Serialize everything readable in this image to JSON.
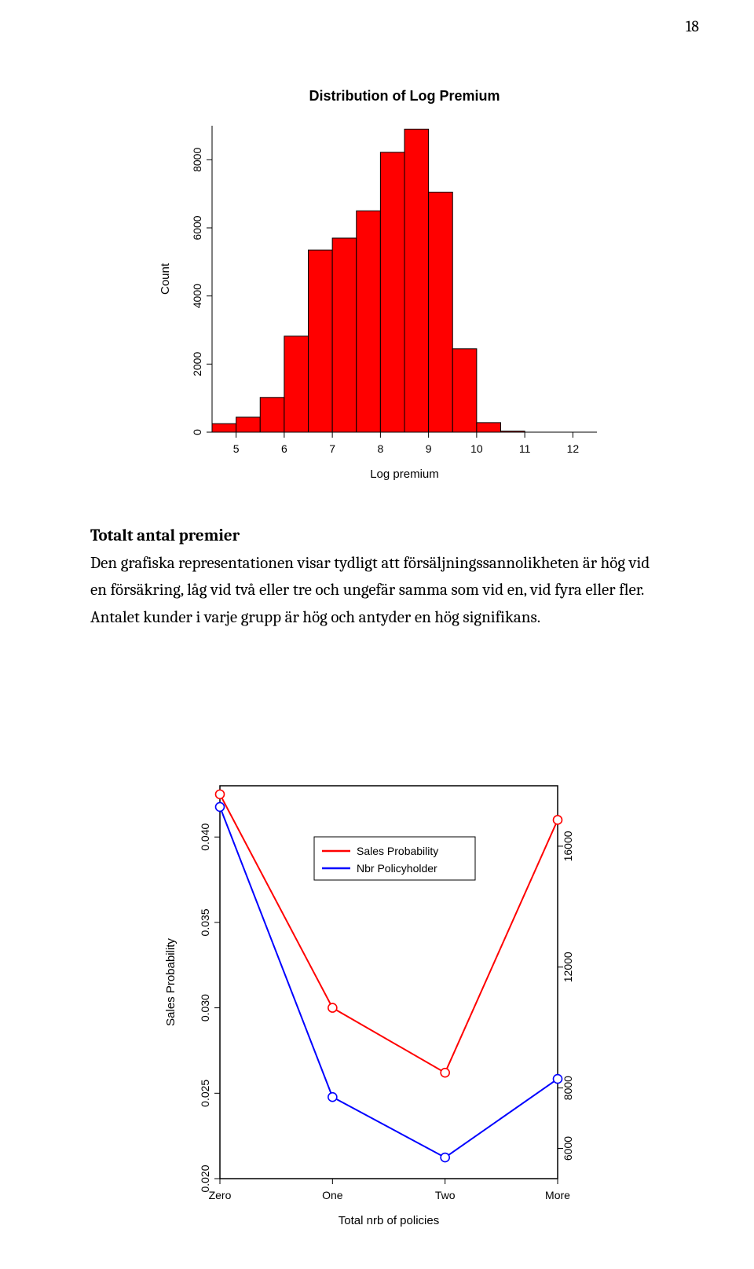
{
  "page_number": "18",
  "paragraph": {
    "heading": "Totalt antal premier",
    "text": "Den grafiska representationen visar tydligt att försäljningssannolikheten är hög vid en försäkring, låg vid två eller tre och ungefär samma som vid en, vid fyra eller fler. Antalet kunder i varje grupp är hög och antyder en hög signifikans."
  },
  "histogram": {
    "title": "Distribution of Log Premium",
    "xlabel": "Log premium",
    "ylabel": "Count",
    "title_fontsize": 18,
    "label_fontsize": 15,
    "tick_fontsize": 14,
    "bar_color": "#ff0000",
    "bar_stroke": "#000000",
    "background": "#ffffff",
    "xlim": [
      4.5,
      12.5
    ],
    "xticks": [
      5,
      6,
      7,
      8,
      9,
      10,
      11,
      12
    ],
    "ylim": [
      0,
      9000
    ],
    "yticks": [
      0,
      2000,
      4000,
      6000,
      8000
    ],
    "bin_width": 0.5,
    "bin_edges": [
      4.5,
      5,
      5.5,
      6,
      6.5,
      7,
      7.5,
      8,
      8.5,
      9,
      9.5,
      10,
      10.5,
      11,
      11.5,
      12
    ],
    "counts": [
      250,
      440,
      1020,
      2820,
      5350,
      5700,
      6500,
      8220,
      8900,
      7050,
      2450,
      280,
      30,
      0,
      0
    ]
  },
  "linechart": {
    "xlabel": "Total nrb of policies",
    "ylabel": "Sales Probability",
    "label_fontsize": 15,
    "tick_fontsize": 14,
    "categories": [
      "Zero",
      "One",
      "Two",
      "More"
    ],
    "left_axis": {
      "lim": [
        0.02,
        0.043
      ],
      "ticks": [
        0.02,
        0.025,
        0.03,
        0.035,
        0.04
      ]
    },
    "right_axis": {
      "lim": [
        5000,
        18000
      ],
      "ticks": [
        6000,
        8000,
        12000,
        16000
      ]
    },
    "series": [
      {
        "name": "Sales Probability",
        "color": "#ff0000",
        "axis": "left",
        "values": [
          0.0425,
          0.03,
          0.0262,
          0.041
        ]
      },
      {
        "name": "Nbr Policyholder",
        "color": "#0000ff",
        "axis": "left_mapped_right",
        "values_right": [
          17300,
          7700,
          5700,
          8300
        ]
      }
    ],
    "legend": {
      "items": [
        {
          "label": "Sales Probability",
          "color": "#ff0000"
        },
        {
          "label": "Nbr Policyholder",
          "color": "#0000ff"
        }
      ]
    },
    "marker": "circle_open",
    "line_width": 2,
    "box_stroke": "#000000"
  }
}
